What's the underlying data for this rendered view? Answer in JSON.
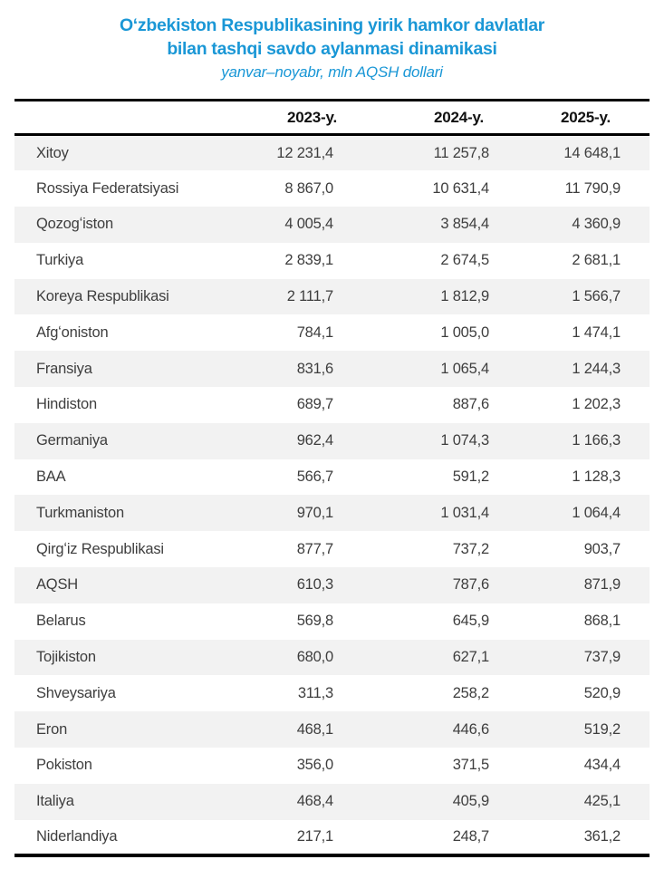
{
  "title": {
    "line1": "Oʻzbekiston Respublikasining yirik hamkor davlatlar",
    "line2": "bilan tashqi savdo aylanmasi dinamikasi",
    "subtitle": "yanvar–noyabr, mln AQSH dollari"
  },
  "colors": {
    "accent_blue": "#1a97d6",
    "row_alt_background": "#f2f2f2",
    "body_text": "#3e3e3e",
    "border_black": "#000000"
  },
  "table": {
    "headers": [
      "2023-y.",
      "2024-y.",
      "2025-y."
    ],
    "rows": [
      {
        "country": "Xitoy",
        "y2023": "12 231,4",
        "y2024": "11 257,8",
        "y2025": "14 648,1"
      },
      {
        "country": "Rossiya Federatsiyasi",
        "y2023": "8 867,0",
        "y2024": "10 631,4",
        "y2025": "11 790,9"
      },
      {
        "country": "Qozogʻiston",
        "y2023": "4 005,4",
        "y2024": "3 854,4",
        "y2025": "4 360,9"
      },
      {
        "country": "Turkiya",
        "y2023": "2 839,1",
        "y2024": "2 674,5",
        "y2025": "2 681,1"
      },
      {
        "country": "Koreya Respublikasi",
        "y2023": "2 111,7",
        "y2024": "1 812,9",
        "y2025": "1 566,7"
      },
      {
        "country": "Afgʻoniston",
        "y2023": "784,1",
        "y2024": "1 005,0",
        "y2025": "1 474,1"
      },
      {
        "country": "Fransiya",
        "y2023": "831,6",
        "y2024": "1 065,4",
        "y2025": "1 244,3"
      },
      {
        "country": "Hindiston",
        "y2023": "689,7",
        "y2024": "887,6",
        "y2025": "1 202,3"
      },
      {
        "country": "Germaniya",
        "y2023": "962,4",
        "y2024": "1 074,3",
        "y2025": "1 166,3"
      },
      {
        "country": "BAA",
        "y2023": "566,7",
        "y2024": "591,2",
        "y2025": "1 128,3"
      },
      {
        "country": "Turkmaniston",
        "y2023": "970,1",
        "y2024": "1 031,4",
        "y2025": "1 064,4"
      },
      {
        "country": "Qirgʻiz Respublikasi",
        "y2023": "877,7",
        "y2024": "737,2",
        "y2025": "903,7"
      },
      {
        "country": "AQSH",
        "y2023": "610,3",
        "y2024": "787,6",
        "y2025": "871,9"
      },
      {
        "country": "Belarus",
        "y2023": "569,8",
        "y2024": "645,9",
        "y2025": "868,1"
      },
      {
        "country": "Tojikiston",
        "y2023": "680,0",
        "y2024": "627,1",
        "y2025": "737,9"
      },
      {
        "country": "Shveysariya",
        "y2023": "311,3",
        "y2024": "258,2",
        "y2025": "520,9"
      },
      {
        "country": "Eron",
        "y2023": "468,1",
        "y2024": "446,6",
        "y2025": "519,2"
      },
      {
        "country": "Pokiston",
        "y2023": "356,0",
        "y2024": "371,5",
        "y2025": "434,4"
      },
      {
        "country": "Italiya",
        "y2023": "468,4",
        "y2024": "405,9",
        "y2025": "425,1"
      },
      {
        "country": "Niderlandiya",
        "y2023": "217,1",
        "y2024": "248,7",
        "y2025": "361,2"
      }
    ]
  },
  "chart_data": {
    "type": "table",
    "title": "Oʻzbekiston Respublikasining yirik hamkor davlatlar bilan tashqi savdo aylanmasi dinamikasi",
    "subtitle": "yanvar–noyabr, mln AQSH dollari",
    "unit": "mln AQSH dollari",
    "categories": [
      "Xitoy",
      "Rossiya Federatsiyasi",
      "Qozogʻiston",
      "Turkiya",
      "Koreya Respublikasi",
      "Afgʻoniston",
      "Fransiya",
      "Hindiston",
      "Germaniya",
      "BAA",
      "Turkmaniston",
      "Qirgʻiz Respublikasi",
      "AQSH",
      "Belarus",
      "Tojikiston",
      "Shveysariya",
      "Eron",
      "Pokiston",
      "Italiya",
      "Niderlandiya"
    ],
    "series": [
      {
        "name": "2023-y.",
        "values": [
          12231.4,
          8867.0,
          4005.4,
          2839.1,
          2111.7,
          784.1,
          831.6,
          689.7,
          962.4,
          566.7,
          970.1,
          877.7,
          610.3,
          569.8,
          680.0,
          311.3,
          468.1,
          356.0,
          468.4,
          217.1
        ]
      },
      {
        "name": "2024-y.",
        "values": [
          11257.8,
          10631.4,
          3854.4,
          2674.5,
          1812.9,
          1005.0,
          1065.4,
          887.6,
          1074.3,
          591.2,
          1031.4,
          737.2,
          787.6,
          645.9,
          627.1,
          258.2,
          446.6,
          371.5,
          405.9,
          248.7
        ]
      },
      {
        "name": "2025-y.",
        "values": [
          14648.1,
          11790.9,
          4360.9,
          2681.1,
          1566.7,
          1474.1,
          1244.3,
          1202.3,
          1166.3,
          1128.3,
          1064.4,
          903.7,
          871.9,
          868.1,
          737.9,
          520.9,
          519.2,
          434.4,
          425.1,
          361.2
        ]
      }
    ]
  }
}
